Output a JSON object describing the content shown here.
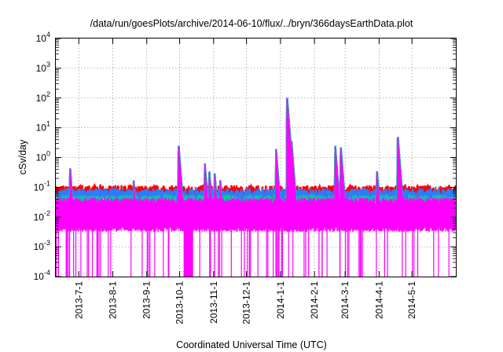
{
  "chart_data": {
    "type": "line",
    "title": "/data/run/goesPlots/archive/2014-06-10/flux/../bryn/366daysEarthData.plot",
    "xlabel": "Coordinated Universal Time (UTC)",
    "ylabel": "cSv/day",
    "yscale": "log",
    "ylim": [
      0.0001,
      10000
    ],
    "yticks": [
      {
        "value": 0.0001,
        "base": "10",
        "exp": "-4"
      },
      {
        "value": 0.001,
        "base": "10",
        "exp": "-3"
      },
      {
        "value": 0.01,
        "base": "10",
        "exp": "-2"
      },
      {
        "value": 0.1,
        "base": "10",
        "exp": "-1"
      },
      {
        "value": 1,
        "base": "10",
        "exp": "0"
      },
      {
        "value": 10,
        "base": "10",
        "exp": "1"
      },
      {
        "value": 100,
        "base": "10",
        "exp": "2"
      },
      {
        "value": 1000,
        "base": "10",
        "exp": "3"
      },
      {
        "value": 10000,
        "base": "10",
        "exp": "4"
      }
    ],
    "xlim": [
      "2013-06-10",
      "2014-06-10"
    ],
    "xticks": [
      "2013-7-1",
      "2013-8-1",
      "2013-9-1",
      "2013-10-1",
      "2013-11-1",
      "2013-12-1",
      "2014-1-1",
      "2014-2-1",
      "2014-3-1",
      "2014-4-1",
      "2014-5-1"
    ],
    "xtick_dates": [
      "2013-07-01",
      "2013-08-01",
      "2013-09-01",
      "2013-10-01",
      "2013-11-01",
      "2013-12-01",
      "2014-01-01",
      "2014-02-01",
      "2014-03-01",
      "2014-04-01",
      "2014-05-01"
    ],
    "grid": true,
    "legend": "none",
    "series_colors": [
      "#ff0000",
      "#2e7bff",
      "#00c8a0",
      "#ff00ff"
    ],
    "baseline": {
      "red": 0.07,
      "blue": 0.055,
      "green": 0.035,
      "magenta_top": 0.04,
      "magenta_bottom": 0.004
    },
    "events": [
      {
        "date": "2013-06-23",
        "peak": 0.5
      },
      {
        "date": "2013-08-20",
        "peak": 0.18
      },
      {
        "date": "2013-09-30",
        "peak": 3.0
      },
      {
        "date": "2013-10-24",
        "peak": 0.65
      },
      {
        "date": "2013-10-28",
        "peak": 0.4
      },
      {
        "date": "2013-11-02",
        "peak": 0.3
      },
      {
        "date": "2013-11-07",
        "peak": 0.2
      },
      {
        "date": "2013-12-28",
        "peak": 2.0
      },
      {
        "date": "2014-01-07",
        "peak": 120
      },
      {
        "date": "2014-01-11",
        "peak": 4.0
      },
      {
        "date": "2014-02-20",
        "peak": 2.5
      },
      {
        "date": "2014-02-25",
        "peak": 2.5
      },
      {
        "date": "2014-03-30",
        "peak": 0.4
      },
      {
        "date": "2014-04-18",
        "peak": 6.0
      }
    ],
    "magenta_dropout_ranges": [
      [
        "2013-10-05",
        "2013-10-13"
      ]
    ]
  }
}
